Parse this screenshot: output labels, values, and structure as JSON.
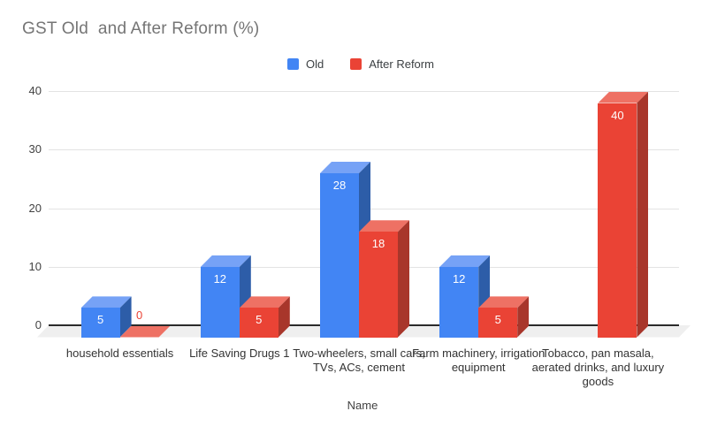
{
  "title": "GST Old  and After Reform (%)",
  "chart_data": {
    "type": "bar",
    "title": "GST Old  and After Reform (%)",
    "xlabel": "Name",
    "ylabel": "",
    "ylim": [
      0,
      40
    ],
    "yticks": [
      0,
      10,
      20,
      30,
      40
    ],
    "grid": true,
    "legend_position": "top-center",
    "style": "3d-column",
    "categories": [
      "household essentials",
      "Life Saving Drugs 1",
      "Two-wheelers, small cars, TVs, ACs, cement",
      "Farm machinery, irrigation equipment",
      "Tobacco, pan masala, aerated drinks, and luxury goods"
    ],
    "series": [
      {
        "name": "Old",
        "color": "#4285f4",
        "values": [
          5,
          12,
          28,
          12,
          null
        ]
      },
      {
        "name": "After Reform",
        "color": "#ea4335",
        "values": [
          0,
          5,
          18,
          5,
          40
        ]
      }
    ],
    "data_labels_shown": true
  },
  "colors": {
    "background": "#ffffff",
    "title_text": "#757575",
    "legend_text": "#3c4043",
    "axis_text": "#424242",
    "category_text": "#333333",
    "gridline": "#e3e3e3",
    "zero_line": "#2b2b2b",
    "floor": "#efefef",
    "value_label": "#ffffff",
    "series_styles": [
      {
        "front": "#4285f4",
        "top": "#76a2f6",
        "side": "#2d5da8"
      },
      {
        "front": "#ea4335",
        "top": "#ee7164",
        "side": "#a8362b"
      }
    ]
  }
}
